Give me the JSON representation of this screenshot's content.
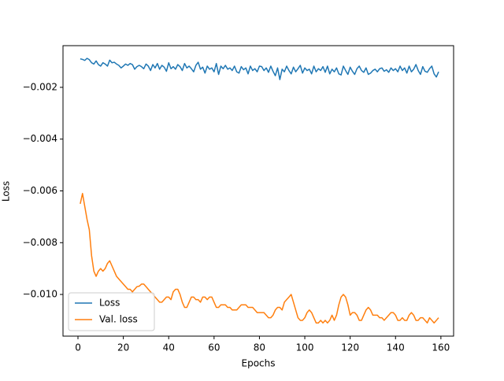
{
  "chart_data": {
    "type": "line",
    "x_label": "Epochs",
    "y_label": "Loss",
    "x": [
      1,
      2,
      3,
      4,
      5,
      6,
      7,
      8,
      9,
      10,
      11,
      12,
      13,
      14,
      15,
      16,
      17,
      18,
      19,
      20,
      21,
      22,
      23,
      24,
      25,
      26,
      27,
      28,
      29,
      30,
      31,
      32,
      33,
      34,
      35,
      36,
      37,
      38,
      39,
      40,
      41,
      42,
      43,
      44,
      45,
      46,
      47,
      48,
      49,
      50,
      51,
      52,
      53,
      54,
      55,
      56,
      57,
      58,
      59,
      60,
      61,
      62,
      63,
      64,
      65,
      66,
      67,
      68,
      69,
      70,
      71,
      72,
      73,
      74,
      75,
      76,
      77,
      78,
      79,
      80,
      81,
      82,
      83,
      84,
      85,
      86,
      87,
      88,
      89,
      90,
      91,
      92,
      93,
      94,
      95,
      96,
      97,
      98,
      99,
      100,
      101,
      102,
      103,
      104,
      105,
      106,
      107,
      108,
      109,
      110,
      111,
      112,
      113,
      114,
      115,
      116,
      117,
      118,
      119,
      120,
      121,
      122,
      123,
      124,
      125,
      126,
      127,
      128,
      129,
      130,
      131,
      132,
      133,
      134,
      135,
      136,
      137,
      138,
      139,
      140,
      141,
      142,
      143,
      144,
      145,
      146,
      147,
      148,
      149,
      150,
      151,
      152,
      153,
      154,
      155,
      156,
      157,
      158,
      159
    ],
    "series": [
      {
        "name": "Loss",
        "color": "#1f77b4",
        "values": [
          -0.0009,
          -0.00092,
          -0.00096,
          -0.00088,
          -0.00093,
          -0.00105,
          -0.0011,
          -0.00098,
          -0.00112,
          -0.00118,
          -0.00105,
          -0.0011,
          -0.00118,
          -0.00095,
          -0.00105,
          -0.00103,
          -0.0011,
          -0.00115,
          -0.00125,
          -0.00118,
          -0.0011,
          -0.00115,
          -0.00108,
          -0.00112,
          -0.0013,
          -0.0012,
          -0.00115,
          -0.0012,
          -0.00128,
          -0.0011,
          -0.00118,
          -0.00135,
          -0.00112,
          -0.00125,
          -0.00108,
          -0.0013,
          -0.00115,
          -0.00122,
          -0.00138,
          -0.00105,
          -0.00128,
          -0.0012,
          -0.0013,
          -0.00112,
          -0.0012,
          -0.00135,
          -0.00108,
          -0.00125,
          -0.00118,
          -0.00128,
          -0.0014,
          -0.00115,
          -0.00103,
          -0.0013,
          -0.00122,
          -0.00145,
          -0.00118,
          -0.0013,
          -0.00125,
          -0.0014,
          -0.00108,
          -0.0015,
          -0.00118,
          -0.00128,
          -0.00115,
          -0.0013,
          -0.00125,
          -0.00135,
          -0.00118,
          -0.0014,
          -0.00145,
          -0.0012,
          -0.00132,
          -0.00125,
          -0.00148,
          -0.00118,
          -0.00135,
          -0.00128,
          -0.0014,
          -0.00118,
          -0.0012,
          -0.00135,
          -0.00125,
          -0.00142,
          -0.00118,
          -0.00138,
          -0.00155,
          -0.00125,
          -0.0017,
          -0.0013,
          -0.0014,
          -0.00118,
          -0.00135,
          -0.00148,
          -0.00122,
          -0.0014,
          -0.00128,
          -0.00115,
          -0.00145,
          -0.00125,
          -0.00135,
          -0.0013,
          -0.00148,
          -0.00118,
          -0.0014,
          -0.00128,
          -0.00135,
          -0.0012,
          -0.00142,
          -0.00118,
          -0.00148,
          -0.0013,
          -0.0014,
          -0.00125,
          -0.00148,
          -0.00152,
          -0.00118,
          -0.00135,
          -0.0015,
          -0.00122,
          -0.00138,
          -0.0015,
          -0.00128,
          -0.00118,
          -0.00135,
          -0.00142,
          -0.00125,
          -0.0015,
          -0.00145,
          -0.00135,
          -0.0013,
          -0.0014,
          -0.00128,
          -0.00125,
          -0.00138,
          -0.00132,
          -0.00142,
          -0.00125,
          -0.00135,
          -0.00128,
          -0.0014,
          -0.00118,
          -0.00135,
          -0.00125,
          -0.00145,
          -0.00118,
          -0.0014,
          -0.0013,
          -0.00112,
          -0.00135,
          -0.0015,
          -0.0012,
          -0.00138,
          -0.00142,
          -0.00128,
          -0.00118,
          -0.00148,
          -0.0016,
          -0.0014
        ]
      },
      {
        "name": "Val. loss",
        "color": "#ff7f0e",
        "values": [
          -0.0065,
          -0.0061,
          -0.0066,
          -0.0071,
          -0.0075,
          -0.0085,
          -0.0091,
          -0.0093,
          -0.0091,
          -0.009,
          -0.0091,
          -0.009,
          -0.0088,
          -0.0087,
          -0.0089,
          -0.0091,
          -0.0093,
          -0.0094,
          -0.0095,
          -0.0096,
          -0.0097,
          -0.0098,
          -0.0098,
          -0.0099,
          -0.0098,
          -0.0097,
          -0.00968,
          -0.0096,
          -0.0096,
          -0.0097,
          -0.0098,
          -0.0099,
          -0.01,
          -0.0101,
          -0.0102,
          -0.0103,
          -0.0103,
          -0.0102,
          -0.0101,
          -0.0101,
          -0.0102,
          -0.0099,
          -0.0098,
          -0.0098,
          -0.01,
          -0.0103,
          -0.0105,
          -0.0105,
          -0.0103,
          -0.0101,
          -0.0101,
          -0.0102,
          -0.0102,
          -0.0103,
          -0.0101,
          -0.0101,
          -0.0102,
          -0.0101,
          -0.0101,
          -0.0103,
          -0.0105,
          -0.0105,
          -0.0104,
          -0.0104,
          -0.0104,
          -0.0105,
          -0.0105,
          -0.0106,
          -0.0106,
          -0.0106,
          -0.0105,
          -0.0104,
          -0.0104,
          -0.0104,
          -0.0105,
          -0.0105,
          -0.0105,
          -0.0106,
          -0.0107,
          -0.0107,
          -0.0107,
          -0.0107,
          -0.0108,
          -0.0109,
          -0.0109,
          -0.0108,
          -0.0106,
          -0.0105,
          -0.0105,
          -0.0106,
          -0.0103,
          -0.0102,
          -0.0101,
          -0.01,
          -0.0103,
          -0.0106,
          -0.0109,
          -0.011,
          -0.011,
          -0.0109,
          -0.0107,
          -0.0106,
          -0.0107,
          -0.0109,
          -0.0111,
          -0.0111,
          -0.011,
          -0.0111,
          -0.011,
          -0.0111,
          -0.011,
          -0.0108,
          -0.011,
          -0.0108,
          -0.0104,
          -0.0101,
          -0.01,
          -0.0101,
          -0.0104,
          -0.0108,
          -0.0107,
          -0.0107,
          -0.0108,
          -0.011,
          -0.011,
          -0.0108,
          -0.0106,
          -0.0105,
          -0.0106,
          -0.0108,
          -0.0108,
          -0.0108,
          -0.0109,
          -0.0109,
          -0.011,
          -0.0109,
          -0.0108,
          -0.0107,
          -0.0107,
          -0.0108,
          -0.011,
          -0.011,
          -0.0109,
          -0.011,
          -0.011,
          -0.0108,
          -0.0107,
          -0.0108,
          -0.011,
          -0.011,
          -0.0109,
          -0.0109,
          -0.011,
          -0.0111,
          -0.0109,
          -0.011,
          -0.0111,
          -0.011,
          -0.0109
        ]
      }
    ],
    "xlim": [
      -6.6,
      165.6
    ],
    "xticks": [
      0,
      20,
      40,
      60,
      80,
      100,
      120,
      140,
      160
    ],
    "ylim": [
      -0.01161,
      -0.00039
    ],
    "yticks": [
      {
        "value": -0.01,
        "label": "−0.010"
      },
      {
        "value": -0.008,
        "label": "−0.008"
      },
      {
        "value": -0.006,
        "label": "−0.006"
      },
      {
        "value": -0.004,
        "label": "−0.004"
      },
      {
        "value": -0.002,
        "label": "−0.002"
      }
    ],
    "grid": false,
    "legend": "lower left"
  }
}
